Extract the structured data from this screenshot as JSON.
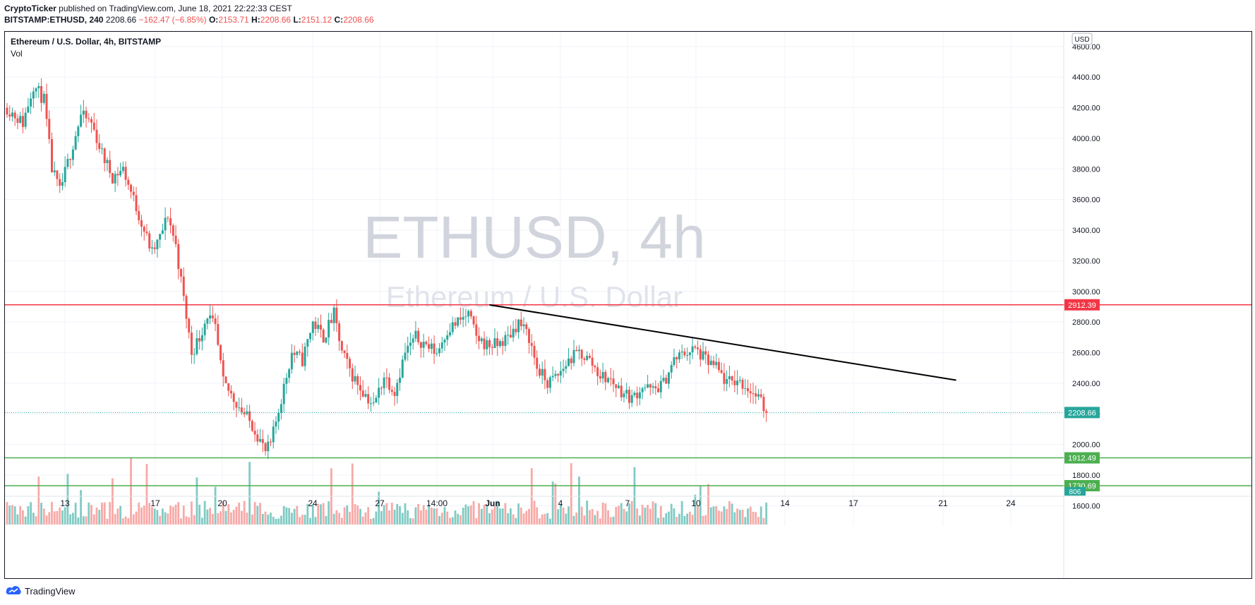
{
  "header": {
    "publisher": "CryptoTicker",
    "published_text": " published on TradingView.com, June 18, 2021 22:22:33 CEST",
    "symbol_line": "BITSTAMP:ETHUSD, 240",
    "price": "2208.66",
    "change": "−162.47 (−6.85%)",
    "o_label": "O:",
    "o_value": "2153.71",
    "h_label": "H:",
    "h_value": "2208.66",
    "l_label": "L:",
    "l_value": "2151.12",
    "c_label": "C:",
    "c_value": "2208.66"
  },
  "legend": {
    "title": "Ethereum / U.S. Dollar, 4h, BITSTAMP",
    "vol": "Vol"
  },
  "watermark": {
    "line1": "ETHUSD, 4h",
    "line2": "Ethereum / U.S. Dollar"
  },
  "currency": "USD",
  "footer": {
    "brand": "TradingView",
    "logo_icon": "tradingview-logo-icon"
  },
  "colors": {
    "up": "#26a69a",
    "down": "#ef5350",
    "resistance": "#f23645",
    "support": "#4caf50",
    "trend": "#000000"
  },
  "chart_data": {
    "type": "candlestick",
    "title": "Ethereum / U.S. Dollar, 4h, BITSTAMP",
    "ylim": [
      1500,
      4650
    ],
    "yticks": [
      "1600.00",
      "1800.00",
      "2000.00",
      "2200.00",
      "2400.00",
      "2600.00",
      "2800.00",
      "3000.00",
      "3200.00",
      "3400.00",
      "3600.00",
      "3800.00",
      "4000.00",
      "4200.00",
      "4400.00",
      "4600.00"
    ],
    "xticks": [
      "13",
      "17",
      "20",
      "24",
      "27",
      "14:00",
      "Jun",
      "4",
      "7",
      "10",
      "14",
      "17",
      "21",
      "24"
    ],
    "close_path": [
      [
        0,
        4200
      ],
      [
        6,
        4100
      ],
      [
        10,
        4350
      ],
      [
        14,
        4250
      ],
      [
        17,
        3800
      ],
      [
        20,
        3650
      ],
      [
        24,
        3900
      ],
      [
        28,
        4150
      ],
      [
        32,
        4100
      ],
      [
        36,
        3900
      ],
      [
        40,
        3750
      ],
      [
        44,
        3800
      ],
      [
        48,
        3600
      ],
      [
        52,
        3400
      ],
      [
        55,
        3250
      ],
      [
        58,
        3350
      ],
      [
        61,
        3500
      ],
      [
        64,
        3300
      ],
      [
        67,
        2950
      ],
      [
        70,
        2600
      ],
      [
        73,
        2700
      ],
      [
        76,
        2850
      ],
      [
        79,
        2750
      ],
      [
        82,
        2400
      ],
      [
        86,
        2300
      ],
      [
        90,
        2200
      ],
      [
        94,
        2100
      ],
      [
        98,
        1950
      ],
      [
        100,
        2000
      ],
      [
        104,
        2300
      ],
      [
        108,
        2600
      ],
      [
        112,
        2550
      ],
      [
        116,
        2800
      ],
      [
        120,
        2700
      ],
      [
        124,
        2850
      ],
      [
        127,
        2600
      ],
      [
        131,
        2450
      ],
      [
        135,
        2350
      ],
      [
        139,
        2250
      ],
      [
        143,
        2450
      ],
      [
        147,
        2350
      ],
      [
        151,
        2600
      ],
      [
        155,
        2700
      ],
      [
        159,
        2650
      ],
      [
        163,
        2600
      ],
      [
        167,
        2750
      ],
      [
        171,
        2800
      ],
      [
        175,
        2850
      ],
      [
        178,
        2700
      ],
      [
        182,
        2650
      ],
      [
        186,
        2650
      ],
      [
        190,
        2700
      ],
      [
        194,
        2800
      ],
      [
        198,
        2700
      ],
      [
        201,
        2500
      ],
      [
        205,
        2400
      ],
      [
        209,
        2450
      ],
      [
        213,
        2550
      ],
      [
        217,
        2600
      ],
      [
        221,
        2550
      ],
      [
        225,
        2450
      ],
      [
        229,
        2420
      ],
      [
        233,
        2350
      ],
      [
        237,
        2300
      ],
      [
        241,
        2380
      ],
      [
        245,
        2350
      ],
      [
        249,
        2400
      ],
      [
        253,
        2550
      ],
      [
        257,
        2600
      ],
      [
        261,
        2620
      ],
      [
        265,
        2550
      ],
      [
        269,
        2500
      ],
      [
        273,
        2400
      ],
      [
        277,
        2420
      ],
      [
        281,
        2370
      ],
      [
        285,
        2300
      ],
      [
        288,
        2209
      ]
    ],
    "last_price": 2208.66,
    "volume_last": "806",
    "horizontal_levels": [
      {
        "name": "resistance",
        "price": 2912.39
      },
      {
        "name": "support-1",
        "price": 1912.49
      },
      {
        "name": "support-2",
        "price": 1730.69
      }
    ],
    "trendline": {
      "from": [
        183,
        2912
      ],
      "to": [
        360,
        2420
      ]
    }
  }
}
